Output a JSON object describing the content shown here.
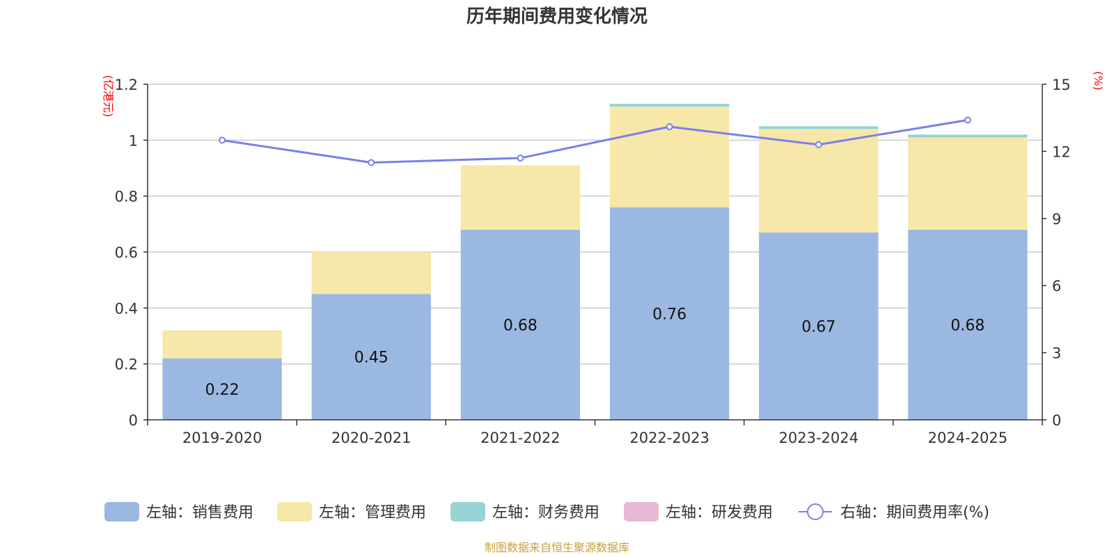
{
  "chart_data": {
    "type": "bar",
    "stacked": true,
    "title": "历年期间费用变化情况",
    "categories": [
      "2019-2020",
      "2020-2021",
      "2021-2022",
      "2022-2023",
      "2023-2024",
      "2024-2025"
    ],
    "left_axis": {
      "unit": "(亿港元)",
      "min": 0,
      "max": 1.2,
      "ticks": [
        "0",
        "0.2",
        "0.4",
        "0.6",
        "0.8",
        "1",
        "1.2"
      ]
    },
    "right_axis": {
      "unit": "(%)",
      "min": 0,
      "max": 15,
      "ticks": [
        "0",
        "3",
        "6",
        "9",
        "12",
        "15"
      ]
    },
    "series": [
      {
        "name": "左轴：销售费用",
        "axis": "left",
        "color": "#9bb8e2",
        "values": [
          0.22,
          0.45,
          0.68,
          0.76,
          0.67,
          0.68
        ],
        "labels": [
          "0.22",
          "0.45",
          "0.68",
          "0.76",
          "0.67",
          "0.68"
        ]
      },
      {
        "name": "左轴：管理费用",
        "axis": "left",
        "color": "#f7e7a8",
        "values": [
          0.1,
          0.15,
          0.23,
          0.36,
          0.37,
          0.33
        ]
      },
      {
        "name": "左轴：财务费用",
        "axis": "left",
        "color": "#96d4d4",
        "values": [
          0.0,
          0.0,
          0.0,
          0.01,
          0.01,
          0.01
        ]
      },
      {
        "name": "左轴：研发费用",
        "axis": "left",
        "color": "#e8b8d8",
        "values": [
          0,
          0,
          0,
          0,
          0,
          0
        ]
      },
      {
        "name": "右轴：期间费用率(%)",
        "axis": "right",
        "type": "line",
        "color": "#7b7fe8",
        "values": [
          12.5,
          11.5,
          11.7,
          13.1,
          12.3,
          13.4
        ]
      }
    ],
    "legend_position": "bottom",
    "source": "制图数据来自恒生聚源数据库"
  }
}
